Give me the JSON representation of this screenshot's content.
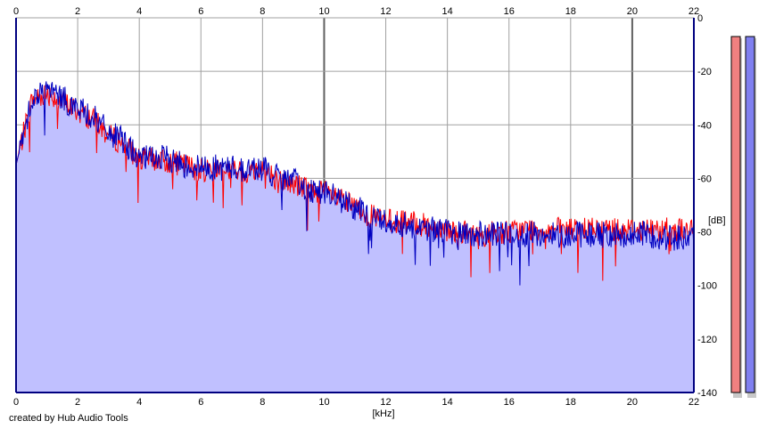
{
  "chart_data": {
    "type": "area",
    "title": "",
    "xlabel": "[kHz]",
    "ylabel": "[dB]",
    "xlim": [
      0,
      22
    ],
    "ylim": [
      -140,
      0
    ],
    "x_ticks": [
      0,
      2,
      4,
      6,
      8,
      10,
      12,
      14,
      16,
      18,
      20,
      22
    ],
    "y_ticks": [
      0,
      -20,
      -40,
      -60,
      -80,
      -100,
      -120,
      -140
    ],
    "grid": true,
    "fill_color": "#c0c0ff",
    "series": [
      {
        "color": "#ff0000",
        "x": [
          0,
          0.5,
          1,
          1.5,
          2,
          2.5,
          3,
          3.5,
          4,
          4.5,
          5,
          5.5,
          6,
          6.5,
          7,
          7.5,
          8,
          8.5,
          9,
          9.5,
          10,
          10.5,
          11,
          11.5,
          12,
          12.5,
          13,
          13.5,
          14,
          14.5,
          15,
          15.5,
          16,
          16.5,
          17,
          17.5,
          18,
          18.5,
          19,
          19.5,
          20,
          20.5,
          21,
          21.5,
          22
        ],
        "values": [
          -55,
          -31,
          -28,
          -31,
          -35,
          -38,
          -44,
          -47,
          -53,
          -53,
          -54,
          -55,
          -57,
          -56,
          -57,
          -58,
          -56,
          -61,
          -62,
          -64,
          -65,
          -68,
          -71,
          -74,
          -76,
          -76,
          -77,
          -78,
          -79,
          -80,
          -82,
          -80,
          -80,
          -79,
          -79,
          -79,
          -79,
          -79,
          -79,
          -79,
          -79,
          -79,
          -79,
          -79,
          -80
        ]
      },
      {
        "color": "#0000c0",
        "x": [
          0,
          0.5,
          1,
          1.5,
          2,
          2.5,
          3,
          3.5,
          4,
          4.5,
          5,
          5.5,
          6,
          6.5,
          7,
          7.5,
          8,
          8.5,
          9,
          9.5,
          10,
          10.5,
          11,
          11.5,
          12,
          12.5,
          13,
          13.5,
          14,
          14.5,
          15,
          15.5,
          16,
          16.5,
          17,
          17.5,
          18,
          18.5,
          19,
          19.5,
          20,
          20.5,
          21,
          21.5,
          22
        ],
        "values": [
          -55,
          -30,
          -27,
          -30,
          -34,
          -37,
          -43,
          -46,
          -53,
          -52,
          -53,
          -55,
          -56,
          -56,
          -56,
          -57,
          -56,
          -60,
          -61,
          -64,
          -65,
          -68,
          -71,
          -74,
          -76,
          -77,
          -78,
          -79,
          -80,
          -81,
          -81,
          -81,
          -81,
          -81,
          -81,
          -81,
          -81,
          -81,
          -81,
          -81,
          -81,
          -81,
          -82,
          -82,
          -83
        ]
      }
    ]
  },
  "level_meters": [
    {
      "color": "#f08080",
      "level_db": -7
    },
    {
      "color": "#8080f0",
      "level_db": -7
    }
  ],
  "credit": "created by Hub Audio Tools"
}
